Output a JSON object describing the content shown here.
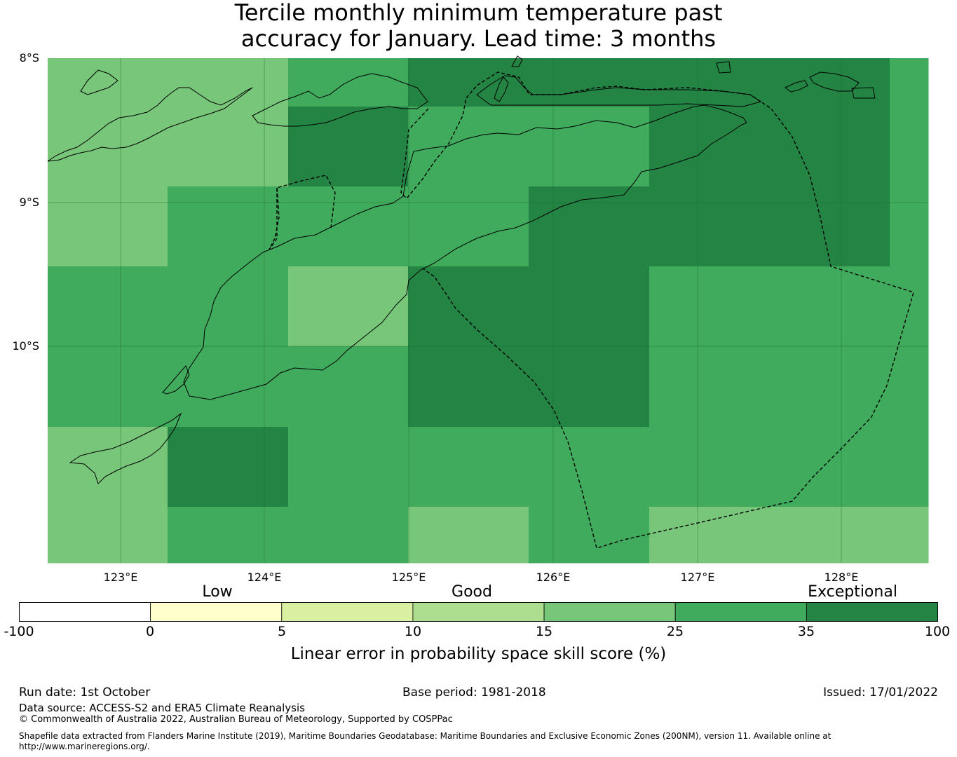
{
  "title": {
    "line1": "Tercile monthly minimum temperature past",
    "line2": "accuracy for January. Lead time: 3 months"
  },
  "map": {
    "lat_labels": [
      "8°S",
      "9°S",
      "10°S"
    ],
    "lon_labels": [
      "123°E",
      "124°E",
      "125°E",
      "126°E",
      "127°E",
      "128°E"
    ],
    "cell_colors": {
      "15-25": "#78c679",
      "25-35": "#41ab5d",
      "35-100": "#238443"
    }
  },
  "colorbar": {
    "categories": [
      "Low",
      "Good",
      "Exceptional"
    ],
    "ticks": [
      "-100",
      "0",
      "5",
      "10",
      "15",
      "25",
      "35",
      "100"
    ],
    "colors": [
      "#ffffff",
      "#ffffcc",
      "#d9f0a3",
      "#addd8e",
      "#78c679",
      "#41ab5d",
      "#238443"
    ],
    "title": "Linear error in probability space skill score (%)"
  },
  "footer": {
    "run_date": "Run date: 1st October",
    "base_period": "Base period: 1981-2018",
    "issued": "Issued: 17/01/2022",
    "data_source": "Data source: ACCESS-S2 and ERA5 Climate Reanalysis",
    "copyright": "© Commonwealth of Australia 2022, Australian Bureau of Meteorology, Supported by COSPPac",
    "shapefile": "Shapefile data extracted from Flanders Marine Institute (2019), Maritime Boundaries Geodatabase: Maritime Boundaries and Exclusive Economic Zones (200NM), version 11. Available online at http://www.marineregions.org/."
  }
}
